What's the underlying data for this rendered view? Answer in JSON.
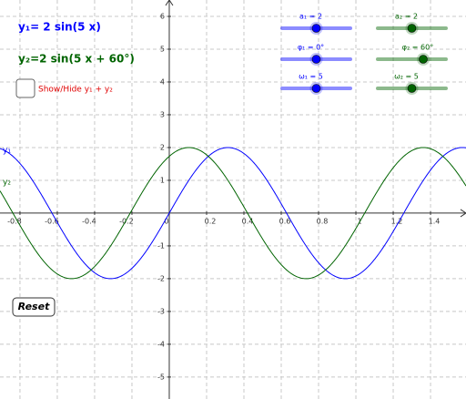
{
  "equations": [
    {
      "text": "y₁= 2 sin(5 x)",
      "color": "#0000ff"
    },
    {
      "text": "y₂=2 sin(5 x + 60°)",
      "color": "#006400"
    }
  ],
  "checkbox_label": "Show/Hide  y₁ + y₂",
  "button": "Reset",
  "curve_labels": [
    "y₁",
    "y₂"
  ],
  "sliders": [
    {
      "label": "a₁ = 2",
      "value": 2,
      "min": 0,
      "max": 4,
      "color": "#0000ff"
    },
    {
      "label": "φ₁ = 0°",
      "value": 0,
      "min": -180,
      "max": 180,
      "color": "#0000ff"
    },
    {
      "label": "ω₁ = 5",
      "value": 5,
      "min": 0,
      "max": 10,
      "color": "#0000ff"
    },
    {
      "label": "a₂ = 2",
      "value": 2,
      "min": 0,
      "max": 4,
      "color": "#006400"
    },
    {
      "label": "φ₂ = 60°",
      "value": 60,
      "min": -180,
      "max": 180,
      "color": "#006400"
    },
    {
      "label": "ω₂ = 5",
      "value": 5,
      "min": 0,
      "max": 10,
      "color": "#006400"
    }
  ],
  "axes": {
    "xlim": [
      -0.907,
      1.59
    ],
    "ylim": [
      -5.67,
      6.5
    ],
    "xticks": [
      -0.8,
      -0.6,
      -0.4,
      -0.2,
      0,
      0.2,
      0.4,
      0.6,
      0.8,
      1,
      1.2,
      1.4
    ],
    "yticks": [
      -5,
      -4,
      -3,
      -2,
      -1,
      1,
      2,
      3,
      4,
      5,
      6
    ],
    "grid": true
  }
}
